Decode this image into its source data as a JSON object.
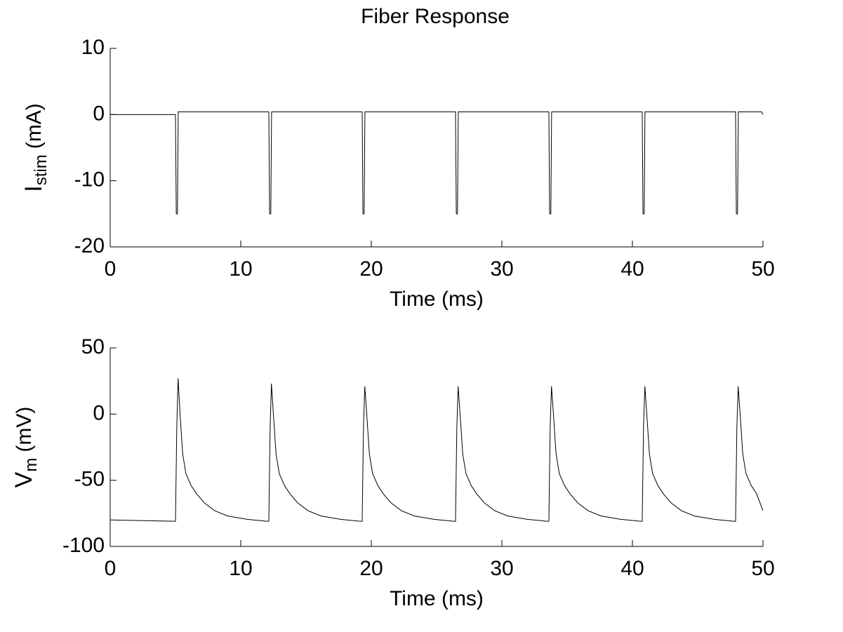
{
  "chart_data": [
    {
      "type": "line",
      "title": "Fiber Response",
      "ylabel": "I",
      "ylabel_sub": "stim",
      "ylabel_unit": "(mA)",
      "xlabel": "Time (ms)",
      "xlim": [
        0,
        50
      ],
      "xticks": [
        0,
        10,
        20,
        30,
        40,
        50
      ],
      "ylim": [
        -20,
        10
      ],
      "yticks": [
        -20,
        -10,
        0,
        10
      ],
      "color": "#000000",
      "x": [
        0,
        5,
        5.03,
        5.06,
        5.15,
        5.18,
        5.21,
        12.15,
        12.18,
        12.21,
        12.3,
        12.33,
        12.36,
        19.3,
        19.33,
        19.36,
        19.45,
        19.48,
        19.51,
        26.45,
        26.48,
        26.51,
        26.6,
        26.63,
        26.66,
        33.6,
        33.63,
        33.66,
        33.75,
        33.78,
        33.81,
        40.75,
        40.78,
        40.81,
        40.9,
        40.93,
        40.96,
        47.9,
        47.93,
        47.96,
        48.05,
        48.08,
        48.11,
        49.9,
        50
      ],
      "values": [
        0,
        0,
        -7.5,
        -15,
        -15,
        -7.5,
        0.4,
        0.4,
        -7.5,
        -15,
        -15,
        -7.5,
        0.4,
        0.4,
        -7.5,
        -15,
        -15,
        -7.5,
        0.4,
        0.4,
        -7.5,
        -15,
        -15,
        -7.5,
        0.4,
        0.4,
        -7.5,
        -15,
        -15,
        -7.5,
        0.4,
        0.4,
        -7.5,
        -15,
        -15,
        -7.5,
        0.4,
        0.4,
        -7.5,
        -15,
        -15,
        -7.5,
        0.4,
        0.4,
        0
      ]
    },
    {
      "type": "line",
      "ylabel": "V",
      "ylabel_sub": "m",
      "ylabel_unit": "(mV)",
      "xlabel": "Time (ms)",
      "xlim": [
        0,
        50
      ],
      "xticks": [
        0,
        10,
        20,
        30,
        40,
        50
      ],
      "ylim": [
        -100,
        50
      ],
      "yticks": [
        -100,
        -50,
        0,
        50
      ],
      "color": "#000000",
      "x": [
        0,
        4.95,
        5,
        5.1,
        5.2,
        5.35,
        5.55,
        5.8,
        6.2,
        6.6,
        7.2,
        8,
        9,
        10.5,
        12,
        12.15,
        12.25,
        12.35,
        12.5,
        12.7,
        12.95,
        13.35,
        13.75,
        14.35,
        15.15,
        16.15,
        17.65,
        19.15,
        19.3,
        19.4,
        19.5,
        19.65,
        19.85,
        20.1,
        20.5,
        20.9,
        21.5,
        22.3,
        23.3,
        24.8,
        26.3,
        26.45,
        26.55,
        26.65,
        26.8,
        27,
        27.25,
        27.65,
        28.05,
        28.65,
        29.45,
        30.45,
        31.95,
        33.45,
        33.6,
        33.7,
        33.8,
        33.95,
        34.15,
        34.4,
        34.8,
        35.2,
        35.8,
        36.6,
        37.6,
        39.1,
        40.6,
        40.75,
        40.85,
        40.95,
        41.1,
        41.3,
        41.55,
        41.95,
        42.35,
        42.95,
        43.75,
        44.75,
        46.25,
        47.75,
        47.9,
        48,
        48.1,
        48.25,
        48.45,
        48.7,
        49.1,
        49.5,
        50
      ],
      "values": [
        -80,
        -81,
        -81,
        -10,
        27,
        0,
        -30,
        -45,
        -54,
        -60,
        -67,
        -73,
        -77,
        -79.5,
        -81,
        -81,
        -10,
        23,
        0,
        -30,
        -45,
        -54,
        -60,
        -67,
        -73,
        -77,
        -79.5,
        -81,
        -81,
        -10,
        21,
        0,
        -30,
        -45,
        -54,
        -60,
        -67,
        -73,
        -77,
        -79.5,
        -81,
        -81,
        -10,
        21,
        0,
        -30,
        -45,
        -54,
        -60,
        -67,
        -73,
        -77,
        -79.5,
        -81,
        -81,
        -10,
        21,
        0,
        -30,
        -45,
        -54,
        -60,
        -67,
        -73,
        -77,
        -79.5,
        -81,
        -81,
        -10,
        21,
        0,
        -30,
        -45,
        -54,
        -60,
        -67,
        -73,
        -77,
        -79.5,
        -81,
        -81,
        -10,
        21,
        0,
        -30,
        -45,
        -54,
        -60,
        -73
      ]
    }
  ]
}
